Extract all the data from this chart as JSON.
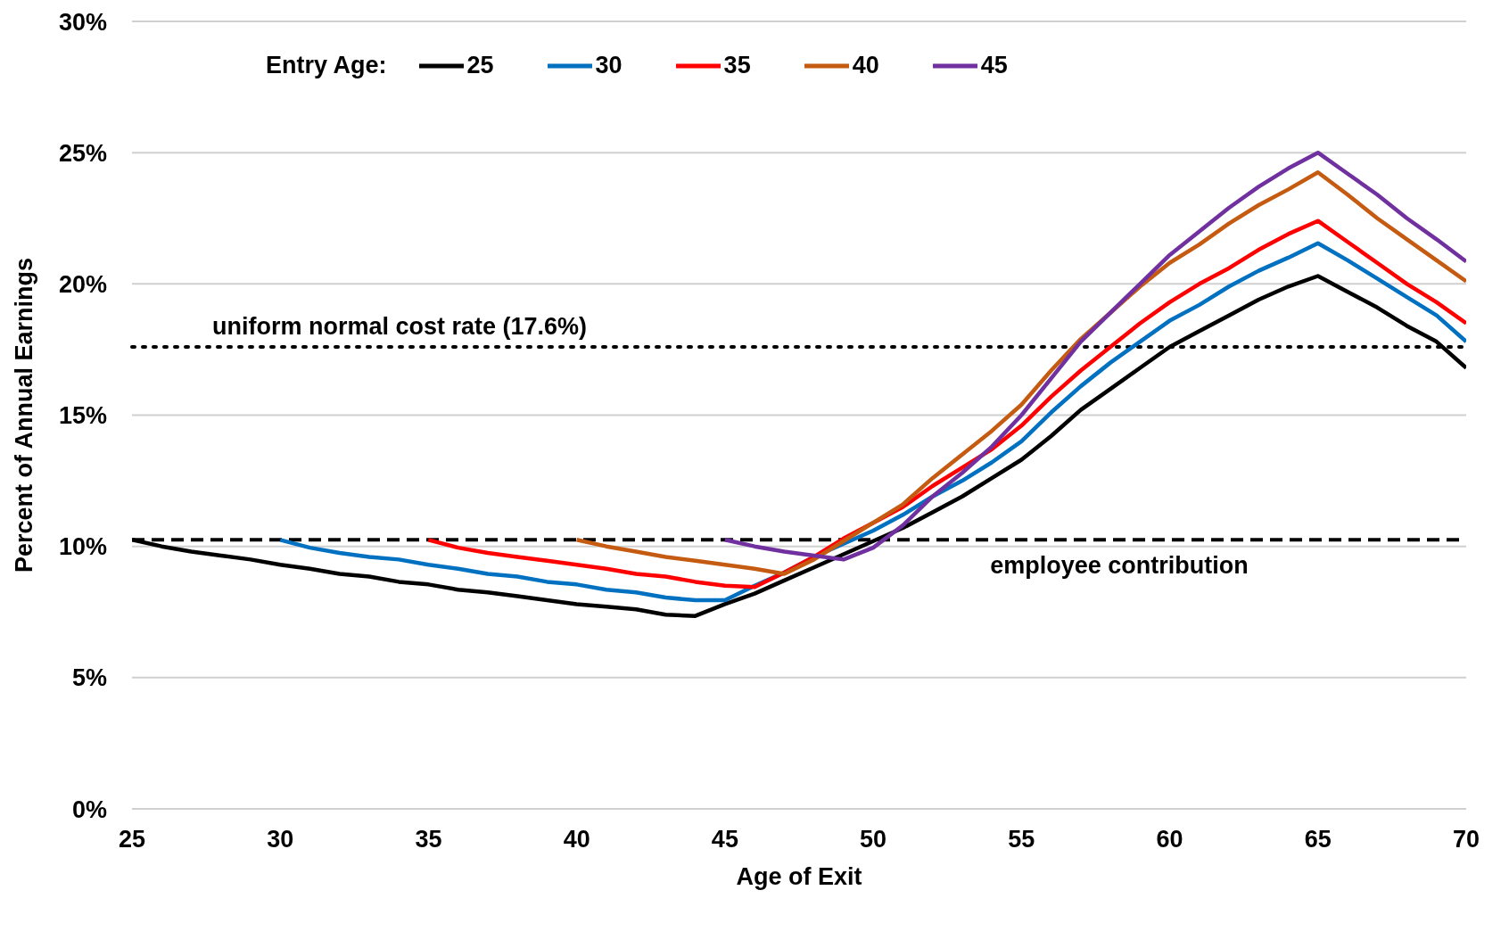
{
  "chart_data": {
    "type": "line",
    "xlabel": "Age of Exit",
    "ylabel": "Percent of Annual Earnings",
    "legend_title": "Entry Age:",
    "legend": "top left",
    "grid": "y",
    "line_style": "solid",
    "marker": "none",
    "x": [
      25,
      26,
      27,
      28,
      29,
      30,
      31,
      32,
      33,
      34,
      35,
      36,
      37,
      38,
      39,
      40,
      41,
      42,
      43,
      44,
      45,
      46,
      47,
      48,
      49,
      50,
      51,
      52,
      53,
      54,
      55,
      56,
      57,
      58,
      59,
      60,
      61,
      62,
      63,
      64,
      65,
      66,
      67,
      68,
      69,
      70
    ],
    "xlim": [
      25,
      70
    ],
    "xticks": [
      25,
      30,
      35,
      40,
      45,
      50,
      55,
      60,
      65,
      70
    ],
    "ylim": [
      0,
      30
    ],
    "yticks": [
      {
        "value": 0,
        "label": "0%"
      },
      {
        "value": 5,
        "label": "5%"
      },
      {
        "value": 10,
        "label": "10%"
      },
      {
        "value": 15,
        "label": "15%"
      },
      {
        "value": 20,
        "label": "20%"
      },
      {
        "value": 25,
        "label": "25%"
      },
      {
        "value": 30,
        "label": "30%"
      }
    ],
    "series": [
      {
        "name": "25",
        "color": "#000000",
        "values": [
          10.25,
          10.0,
          9.8,
          9.65,
          9.5,
          9.3,
          9.15,
          8.95,
          8.85,
          8.65,
          8.55,
          8.35,
          8.25,
          8.1,
          7.95,
          7.8,
          7.7,
          7.6,
          7.4,
          7.35,
          7.8,
          8.2,
          8.7,
          9.2,
          9.7,
          10.2,
          10.7,
          11.3,
          11.9,
          12.6,
          13.3,
          14.2,
          15.2,
          16.0,
          16.8,
          17.6,
          18.2,
          18.8,
          19.4,
          19.9,
          20.3,
          19.7,
          19.1,
          18.4,
          17.8,
          16.8
        ]
      },
      {
        "name": "30",
        "color": "#0070c0",
        "values": [
          null,
          null,
          null,
          null,
          null,
          10.25,
          9.95,
          9.75,
          9.6,
          9.5,
          9.3,
          9.15,
          8.95,
          8.85,
          8.65,
          8.55,
          8.35,
          8.25,
          8.05,
          7.95,
          7.95,
          8.5,
          9.0,
          9.6,
          10.1,
          10.6,
          11.2,
          11.9,
          12.5,
          13.2,
          14.0,
          15.1,
          16.1,
          17.0,
          17.8,
          18.6,
          19.2,
          19.9,
          20.5,
          21.0,
          21.55,
          20.9,
          20.2,
          19.5,
          18.8,
          17.8
        ]
      },
      {
        "name": "35",
        "color": "#ff0000",
        "values": [
          null,
          null,
          null,
          null,
          null,
          null,
          null,
          null,
          null,
          null,
          10.25,
          9.95,
          9.75,
          9.6,
          9.45,
          9.3,
          9.15,
          8.95,
          8.85,
          8.65,
          8.5,
          8.45,
          9.0,
          9.6,
          10.3,
          10.9,
          11.5,
          12.3,
          13.0,
          13.7,
          14.6,
          15.7,
          16.7,
          17.6,
          18.5,
          19.3,
          20.0,
          20.6,
          21.3,
          21.9,
          22.4,
          21.6,
          20.8,
          20.0,
          19.3,
          18.5
        ]
      },
      {
        "name": "40",
        "color": "#c55a11",
        "values": [
          null,
          null,
          null,
          null,
          null,
          null,
          null,
          null,
          null,
          null,
          null,
          null,
          null,
          null,
          null,
          10.25,
          10.0,
          9.8,
          9.6,
          9.45,
          9.3,
          9.15,
          8.95,
          9.5,
          10.2,
          10.9,
          11.6,
          12.6,
          13.5,
          14.4,
          15.4,
          16.7,
          17.9,
          18.9,
          19.9,
          20.8,
          21.5,
          22.3,
          23.0,
          23.6,
          24.25,
          23.4,
          22.5,
          21.7,
          20.9,
          20.1
        ]
      },
      {
        "name": "45",
        "color": "#7030a0",
        "values": [
          null,
          null,
          null,
          null,
          null,
          null,
          null,
          null,
          null,
          null,
          null,
          null,
          null,
          null,
          null,
          null,
          null,
          null,
          null,
          null,
          10.25,
          10.0,
          9.8,
          9.65,
          9.5,
          9.95,
          10.8,
          11.9,
          12.8,
          13.8,
          15.0,
          16.4,
          17.8,
          18.9,
          20.0,
          21.1,
          22.0,
          22.9,
          23.7,
          24.4,
          25.0,
          24.2,
          23.4,
          22.5,
          21.7,
          20.85
        ]
      }
    ],
    "ref_lines": [
      {
        "axis": "y",
        "value": 10.25,
        "label": "employee contribution",
        "color": "#000000",
        "line_style": "dashed"
      },
      {
        "axis": "y",
        "value": 17.6,
        "label": "uniform normal cost rate (17.6%)",
        "color": "#000000",
        "line_style": "dotted"
      }
    ]
  }
}
